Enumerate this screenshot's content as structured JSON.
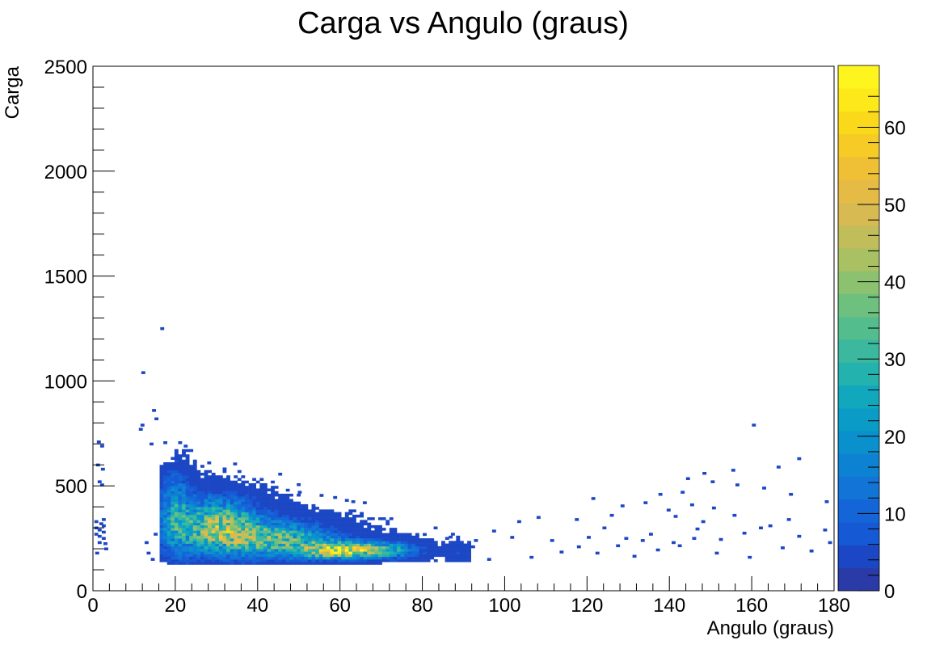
{
  "chart_data": {
    "type": "heatmap",
    "title": "Carga vs Angulo (graus)",
    "xlabel": "Angulo (graus)",
    "ylabel": "Carga",
    "xlim": [
      0,
      180
    ],
    "ylim": [
      0,
      2500
    ],
    "x_ticks": [
      "0",
      "20",
      "40",
      "60",
      "80",
      "100",
      "120",
      "140",
      "160",
      "180"
    ],
    "y_ticks": [
      "0",
      "500",
      "1000",
      "1500",
      "2000",
      "2500"
    ],
    "colorbar": {
      "min": 0,
      "max": 68,
      "ticks": [
        "0",
        "10",
        "20",
        "30",
        "40",
        "50",
        "60"
      ],
      "palette": [
        "#2a3aa6",
        "#1c47c4",
        "#1559d4",
        "#1466d8",
        "#1174d6",
        "#0d82d2",
        "#0a90cc",
        "#0a9cc6",
        "#11a8bd",
        "#23b2ae",
        "#3bb89e",
        "#54bd8e",
        "#6ec07e",
        "#8cc16f",
        "#a9c063",
        "#c2bd5b",
        "#d7ba52",
        "#e5bb45",
        "#efc036",
        "#f6cb26",
        "#fad91b",
        "#fde819",
        "#fff51e"
      ]
    },
    "note_grid": "bins: 0.9 degrees x 12.5 charge units; values are counts",
    "clusters": [
      {
        "x": 30,
        "y": 310,
        "sx": 7,
        "sy": 85,
        "peak": 38
      },
      {
        "x": 45,
        "y": 245,
        "sx": 9,
        "sy": 55,
        "peak": 32
      },
      {
        "x": 60,
        "y": 195,
        "sx": 6,
        "sy": 25,
        "peak": 55
      },
      {
        "x": 72,
        "y": 195,
        "sx": 5,
        "sy": 28,
        "peak": 22
      },
      {
        "x": 20,
        "y": 380,
        "sx": 2.5,
        "sy": 150,
        "peak": 16
      },
      {
        "x": 89,
        "y": 175,
        "sx": 2,
        "sy": 30,
        "peak": 5
      }
    ],
    "isolated_points": [
      [
        16.8,
        1250
      ],
      [
        12.2,
        1040
      ],
      [
        14.8,
        860
      ],
      [
        15.4,
        820
      ],
      [
        12.0,
        790
      ],
      [
        11.6,
        770
      ],
      [
        1.4,
        710
      ],
      [
        2.2,
        690
      ],
      [
        14.2,
        700
      ],
      [
        22.5,
        690
      ],
      [
        28.2,
        610
      ],
      [
        34.5,
        605
      ],
      [
        1.2,
        600
      ],
      [
        2.4,
        580
      ],
      [
        1.6,
        520
      ],
      [
        2.2,
        505
      ],
      [
        47.3,
        480
      ],
      [
        50.2,
        470
      ],
      [
        55.5,
        455
      ],
      [
        58.8,
        445
      ],
      [
        63.2,
        425
      ],
      [
        66.0,
        420
      ],
      [
        160.5,
        790
      ],
      [
        171.5,
        630
      ],
      [
        166.5,
        590
      ],
      [
        155.5,
        575
      ],
      [
        148.5,
        560
      ],
      [
        144.5,
        535
      ],
      [
        150.5,
        520
      ],
      [
        156.5,
        505
      ],
      [
        163.0,
        490
      ],
      [
        169.5,
        460
      ],
      [
        178.2,
        425
      ],
      [
        126.0,
        360
      ],
      [
        117.5,
        340
      ],
      [
        108.2,
        350
      ],
      [
        103.5,
        330
      ],
      [
        97.4,
        285
      ],
      [
        101.8,
        255
      ],
      [
        111.5,
        240
      ],
      [
        118.0,
        210
      ],
      [
        122.5,
        180
      ],
      [
        131.5,
        165
      ],
      [
        137.2,
        195
      ],
      [
        142.5,
        215
      ],
      [
        151.5,
        180
      ],
      [
        159.5,
        160
      ],
      [
        167.5,
        205
      ],
      [
        174.5,
        190
      ],
      [
        179.0,
        230
      ],
      [
        135.5,
        270
      ],
      [
        146.8,
        295
      ],
      [
        152.5,
        245
      ],
      [
        158.2,
        275
      ],
      [
        164.5,
        310
      ],
      [
        171.5,
        260
      ],
      [
        177.8,
        290
      ],
      [
        141.5,
        355
      ],
      [
        148.2,
        330
      ],
      [
        155.8,
        360
      ],
      [
        162.2,
        300
      ],
      [
        169.0,
        340
      ],
      [
        124.2,
        300
      ],
      [
        129.5,
        250
      ],
      [
        113.8,
        185
      ],
      [
        106.5,
        160
      ],
      [
        96.2,
        150
      ],
      [
        92.3,
        210
      ],
      [
        93.0,
        240
      ],
      [
        87.4,
        270
      ],
      [
        83.2,
        300
      ],
      [
        86.0,
        250
      ],
      [
        0.8,
        330
      ],
      [
        0.8,
        300
      ],
      [
        0.8,
        270
      ],
      [
        2.6,
        340
      ],
      [
        2.6,
        310
      ],
      [
        2.6,
        280
      ],
      [
        2.6,
        250
      ],
      [
        1.6,
        230
      ],
      [
        3.2,
        200
      ],
      [
        1.0,
        180
      ],
      [
        1.6,
        290
      ],
      [
        1.6,
        260
      ],
      [
        2.0,
        320
      ],
      [
        3.0,
        225
      ],
      [
        13.5,
        180
      ],
      [
        14.5,
        150
      ],
      [
        15.2,
        270
      ],
      [
        13.0,
        230
      ],
      [
        139.8,
        385
      ],
      [
        145.5,
        410
      ],
      [
        150.8,
        395
      ],
      [
        134.2,
        420
      ],
      [
        128.6,
        405
      ],
      [
        121.5,
        440
      ],
      [
        137.8,
        460
      ],
      [
        143.2,
        470
      ],
      [
        146.0,
        250
      ],
      [
        141.0,
        230
      ],
      [
        133.5,
        240
      ],
      [
        127.5,
        215
      ],
      [
        120.4,
        255
      ]
    ]
  }
}
